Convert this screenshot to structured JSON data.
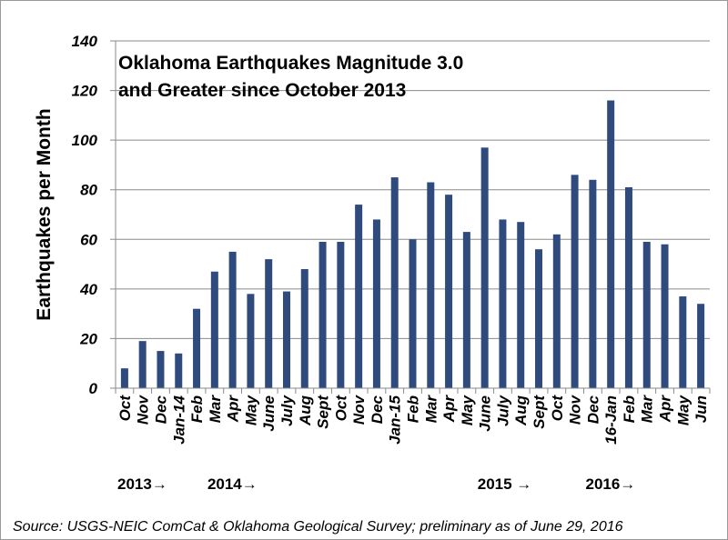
{
  "chart_data": {
    "type": "bar",
    "title_lines": [
      "Oklahoma Earthquakes Magnitude 3.0",
      "and Greater since October 2013"
    ],
    "ylabel": "Earthquakes per Month",
    "xlabel": "",
    "ylim": [
      0,
      140
    ],
    "yticks": [
      0,
      20,
      40,
      60,
      80,
      100,
      120,
      140
    ],
    "grid": true,
    "bar_color": "#2F4A7D",
    "categories": [
      "Oct",
      "Nov",
      "Dec",
      "Jan-14",
      "Feb",
      "Mar",
      "Apr",
      "May",
      "June",
      "July",
      "Aug",
      "Sept",
      "Oct",
      "Nov",
      "Dec",
      "Jan-15",
      "Feb",
      "Mar",
      "Apr",
      "May",
      "June",
      "July",
      "Aug",
      "Sept",
      "Oct",
      "Nov",
      "Dec",
      "16-Jan",
      "Feb",
      "Mar",
      "Apr",
      "May",
      "Jun"
    ],
    "values": [
      8,
      19,
      15,
      14,
      32,
      47,
      55,
      38,
      52,
      39,
      48,
      59,
      59,
      74,
      68,
      85,
      60,
      83,
      78,
      63,
      97,
      68,
      67,
      56,
      62,
      86,
      84,
      116,
      81,
      59,
      58,
      37,
      34
    ],
    "year_markers": [
      {
        "label": "2013→",
        "category_index": 0
      },
      {
        "label": "2014→",
        "category_index": 5
      },
      {
        "label": "2015 →",
        "category_index": 20
      },
      {
        "label": "2016→",
        "category_index": 26
      }
    ],
    "source": "Source: USGS-NEIC ComCat & Oklahoma Geological Survey; preliminary as of  June 29, 2016"
  }
}
